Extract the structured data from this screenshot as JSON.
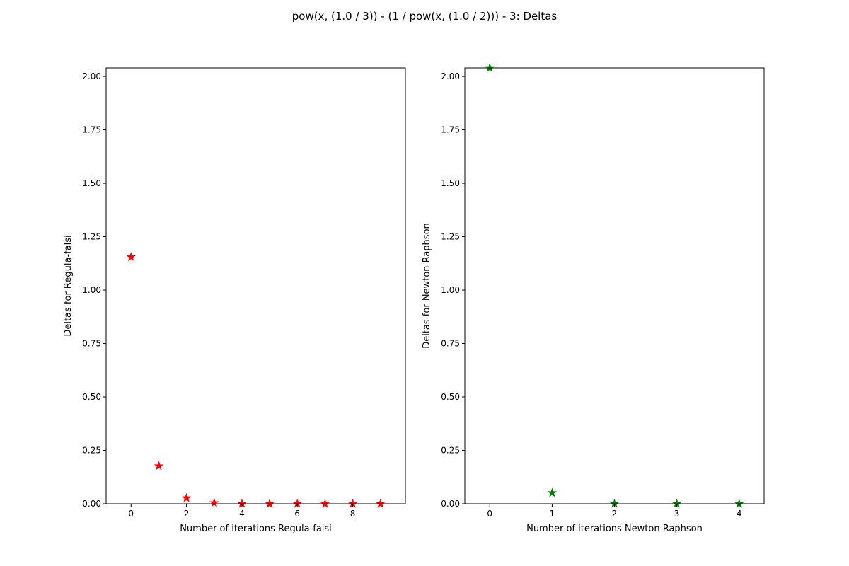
{
  "figure": {
    "title": "pow(x, (1.0 / 3)) - (1 / pow(x, (1.0 / 2))) - 3: Deltas"
  },
  "chart_data": [
    {
      "type": "scatter",
      "marker": "star",
      "color": "#ff0000",
      "xlabel": "Number of iterations Regula-falsi",
      "ylabel": "Deltas for Regula-falsi",
      "x": [
        0,
        1,
        2,
        3,
        4,
        5,
        6,
        7,
        8,
        9
      ],
      "y": [
        1.155,
        0.177,
        0.027,
        0.004,
        0.0006,
        0.0001,
        2e-05,
        0.0,
        0.0,
        0.0
      ],
      "xlim": [
        -0.9,
        9.9
      ],
      "ylim": [
        0,
        2.04
      ],
      "xticks": [
        0,
        2,
        4,
        6,
        8
      ],
      "xtick_labels": [
        "0",
        "2",
        "4",
        "6",
        "8"
      ],
      "yticks": [
        0,
        0.25,
        0.5,
        0.75,
        1.0,
        1.25,
        1.5,
        1.75,
        2.0
      ],
      "ytick_labels": [
        "0.00",
        "0.25",
        "0.50",
        "0.75",
        "1.00",
        "1.25",
        "1.50",
        "1.75",
        "2.00"
      ],
      "grid": false
    },
    {
      "type": "scatter",
      "marker": "star",
      "color": "#008000",
      "xlabel": "Number of iterations Newton Raphson",
      "ylabel": "Deltas for Newton Raphson",
      "x": [
        0,
        1,
        2,
        3,
        4
      ],
      "y": [
        2.04,
        0.051,
        0.0004,
        0.0,
        0.0
      ],
      "xlim": [
        -0.4,
        4.4
      ],
      "ylim": [
        0,
        2.04
      ],
      "xticks": [
        0,
        1,
        2,
        3,
        4
      ],
      "xtick_labels": [
        "0",
        "1",
        "2",
        "3",
        "4"
      ],
      "yticks": [
        0,
        0.25,
        0.5,
        0.75,
        1.0,
        1.25,
        1.5,
        1.75,
        2.0
      ],
      "ytick_labels": [
        "0.00",
        "0.25",
        "0.50",
        "0.75",
        "1.00",
        "1.25",
        "1.50",
        "1.75",
        "2.00"
      ],
      "grid": false
    }
  ]
}
